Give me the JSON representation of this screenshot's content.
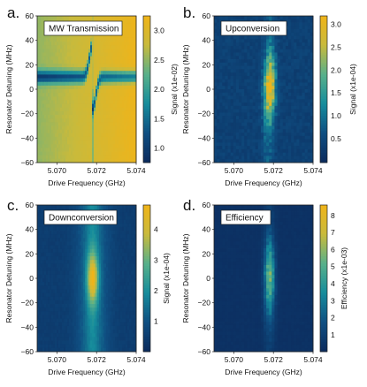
{
  "chart_data": [
    {
      "type": "heatmap",
      "letter": "a.",
      "title": "MW Transmission",
      "xlabel": "Drive Frequency (GHz)",
      "ylabel": "Resonator Detuning (MHz)",
      "xlim": [
        5.069,
        5.074
      ],
      "ylim": [
        -60,
        60
      ],
      "xticks": [
        "5.070",
        "5.072",
        "5.074"
      ],
      "yticks": [
        "60",
        "40",
        "20",
        "0",
        "−20",
        "−40",
        "−60"
      ],
      "colorbar_label": "Signal (x1e-02)",
      "colorbar_ticks": [
        "3.0",
        "2.5",
        "2.0",
        "1.5",
        "1.0"
      ],
      "colorbar_range": [
        0.7,
        3.2
      ],
      "colormap": [
        "#0b2a5c",
        "#0f4f82",
        "#168c9c",
        "#58b08a",
        "#c8ba3c",
        "#f0b419"
      ]
    },
    {
      "type": "heatmap",
      "letter": "b.",
      "title": "Upconversion",
      "xlabel": "Drive Frequency (GHz)",
      "ylabel": "Resonator Detuning (MHz)",
      "xlim": [
        5.069,
        5.074
      ],
      "ylim": [
        -60,
        60
      ],
      "xticks": [
        "5.070",
        "5.072",
        "5.074"
      ],
      "yticks": [
        "60",
        "40",
        "20",
        "0",
        "−20",
        "−40",
        "−60"
      ],
      "colorbar_label": "Signal (x1e-04)",
      "colorbar_ticks": [
        "3.0",
        "2.5",
        "2.0",
        "1.5",
        "1.0",
        "0.5"
      ],
      "colorbar_range": [
        0.0,
        3.2
      ],
      "colormap": [
        "#0b2a5c",
        "#0f4f82",
        "#168c9c",
        "#58b08a",
        "#c8ba3c",
        "#f0b419"
      ]
    },
    {
      "type": "heatmap",
      "letter": "c.",
      "title": "Downconversion",
      "xlabel": "Drive Frequency (GHz)",
      "ylabel": "Resonator Detuning (MHz)",
      "xlim": [
        5.069,
        5.074
      ],
      "ylim": [
        -60,
        60
      ],
      "xticks": [
        "5.070",
        "5.072",
        "5.074"
      ],
      "yticks": [
        "60",
        "40",
        "20",
        "0",
        "−20",
        "−40",
        "−60"
      ],
      "colorbar_label": "Signal (x1e-04)",
      "colorbar_ticks": [
        "4",
        "3",
        "2",
        "1"
      ],
      "colorbar_range": [
        0.0,
        4.8
      ],
      "colormap": [
        "#0b2a5c",
        "#0f4f82",
        "#168c9c",
        "#58b08a",
        "#c8ba3c",
        "#f0b419"
      ]
    },
    {
      "type": "heatmap",
      "letter": "d.",
      "title": "Efficiency",
      "xlabel": "Drive Frequency (GHz)",
      "ylabel": "Resonator Detuning (MHz)",
      "xlim": [
        5.069,
        5.074
      ],
      "ylim": [
        -60,
        60
      ],
      "xticks": [
        "5.070",
        "5.072",
        "5.074"
      ],
      "yticks": [
        "60",
        "40",
        "20",
        "0",
        "−20",
        "−40",
        "−60"
      ],
      "colorbar_label": "Efficiency (x1e-03)",
      "colorbar_ticks": [
        "8",
        "7",
        "6",
        "5",
        "4",
        "3",
        "2",
        "1"
      ],
      "colorbar_range": [
        0.0,
        8.6
      ],
      "colormap": [
        "#0b2a5c",
        "#0f4f82",
        "#168c9c",
        "#58b08a",
        "#c8ba3c",
        "#f0b419"
      ]
    }
  ]
}
